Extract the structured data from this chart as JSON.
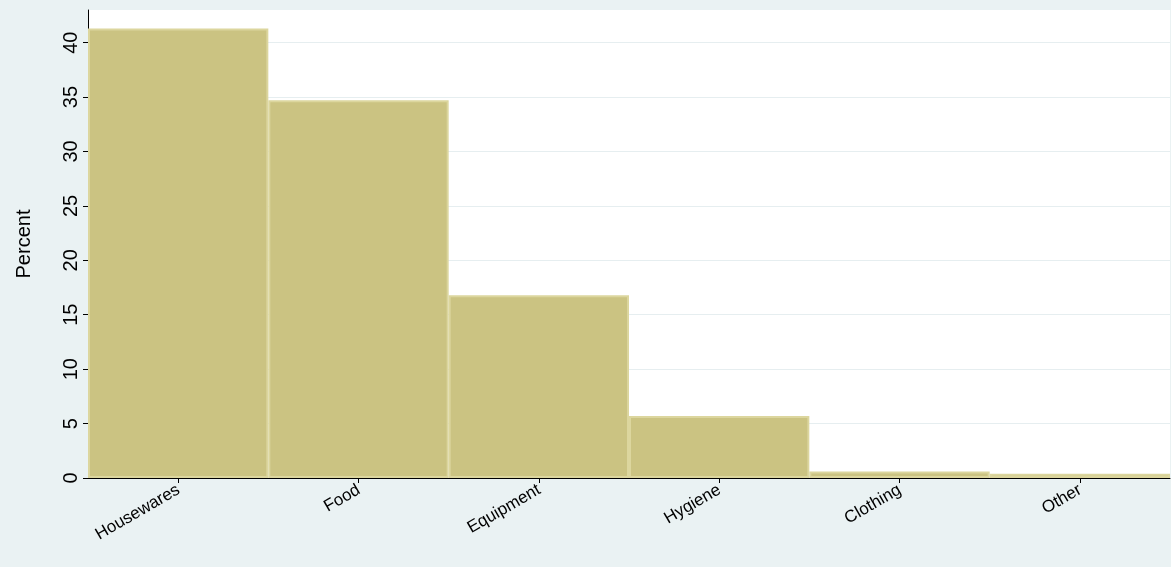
{
  "chart_data": {
    "type": "bar",
    "ylabel": "Percent",
    "categories": [
      "Housewares",
      "Food",
      "Equipment",
      "Hygiene",
      "Clothing",
      "Other"
    ],
    "values": [
      41.3,
      34.7,
      16.8,
      5.7,
      0.6,
      0.4
    ],
    "color": "#cbc382",
    "ylim": [
      0,
      43
    ],
    "yticks": [
      0,
      5,
      10,
      15,
      20,
      25,
      30,
      35,
      40
    ],
    "grid": "y"
  }
}
